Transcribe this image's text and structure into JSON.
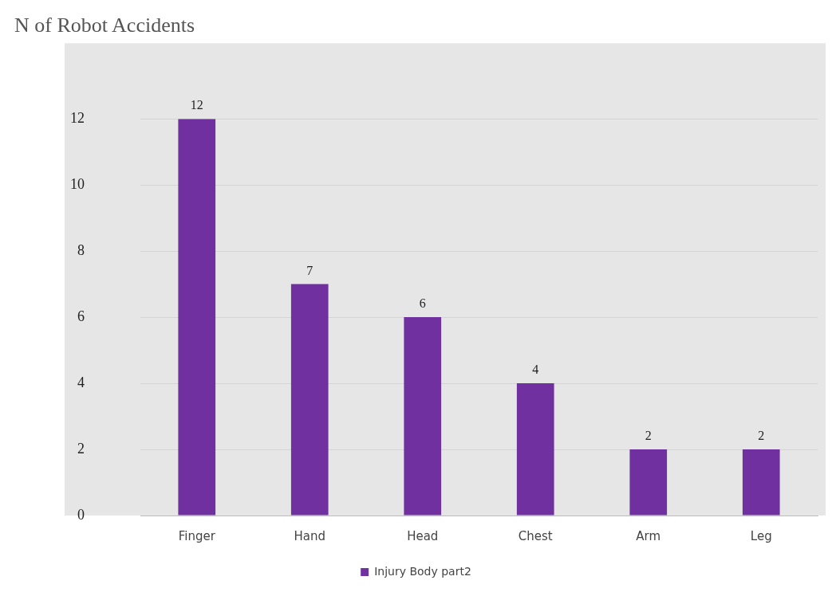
{
  "chart_data": {
    "type": "bar",
    "title": "N of Robot Accidents",
    "categories": [
      "Finger",
      "Hand",
      "Head",
      "Chest",
      "Arm",
      "Leg"
    ],
    "series": [
      {
        "name": "Injury Body part2",
        "color": "#7030a0",
        "values": [
          12,
          7,
          6,
          4,
          2,
          2
        ]
      }
    ],
    "ylim": [
      0,
      12
    ],
    "yticks": [
      0,
      2,
      4,
      6,
      8,
      10,
      12
    ],
    "grid": "y",
    "legend": "bottom",
    "data_labels": true
  }
}
